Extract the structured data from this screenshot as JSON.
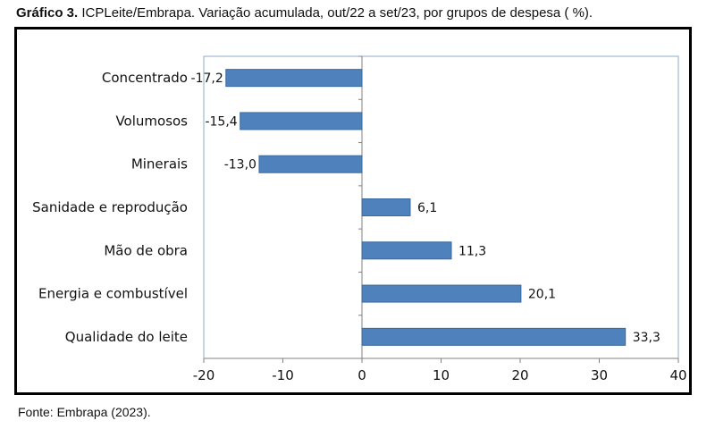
{
  "header": {
    "title_bold": "Gráfico 3.",
    "title_rest": " ICPLeite/Embrapa. Variação acumulada, out/22 a set/23, por grupos de despesa ( %)."
  },
  "footer": {
    "source": "Fonte: Embrapa (2023)."
  },
  "colors": {
    "bar": "#4F81BD",
    "bar_stroke": "#3A6A9E",
    "plot_border": "#8EA9C7"
  },
  "chart_data": {
    "type": "bar",
    "orientation": "horizontal",
    "categories": [
      "Concentrado",
      "Volumosos",
      "Minerais",
      "Sanidade e reprodução",
      "Mão de obra",
      "Energia e combustível",
      "Qualidade do leite"
    ],
    "values": [
      -17.2,
      -15.4,
      -13.0,
      6.1,
      11.3,
      20.1,
      33.3
    ],
    "value_labels": [
      "-17,2",
      "-15,4",
      "-13,0",
      "6,1",
      "11,3",
      "20,1",
      "33,3"
    ],
    "xlim": [
      -20,
      40
    ],
    "xticks": [
      -20,
      -10,
      0,
      10,
      20,
      30,
      40
    ],
    "xtick_labels": [
      "-20",
      "-10",
      "0",
      "10",
      "20",
      "30",
      "40"
    ],
    "grid": false,
    "legend": "none"
  }
}
